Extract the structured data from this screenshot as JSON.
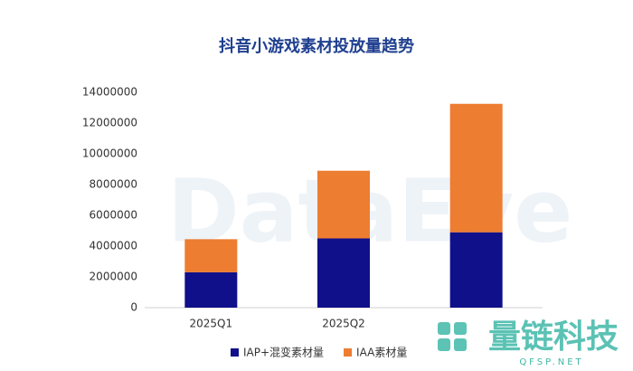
{
  "chart_data": {
    "type": "stacked-bar",
    "title": "抖音小游戏素材投放量趋势",
    "categories": [
      "2025Q1",
      "2025Q2",
      null
    ],
    "series": [
      {
        "name": "IAP+混变素材量",
        "color": "#10108a",
        "values": [
          2300000,
          4500000,
          4900000
        ]
      },
      {
        "name": "IAA素材量",
        "color": "#ed7d31",
        "values": [
          2150000,
          4400000,
          8350000
        ]
      }
    ],
    "ylim": [
      0,
      14000000
    ],
    "yticks": [
      0,
      2000000,
      4000000,
      6000000,
      8000000,
      10000000,
      12000000,
      14000000
    ],
    "grid": false,
    "legend": "bottom"
  },
  "background_watermark": "DataEye",
  "watermark": {
    "name": "量链科技",
    "site": "QFSP.NET"
  }
}
